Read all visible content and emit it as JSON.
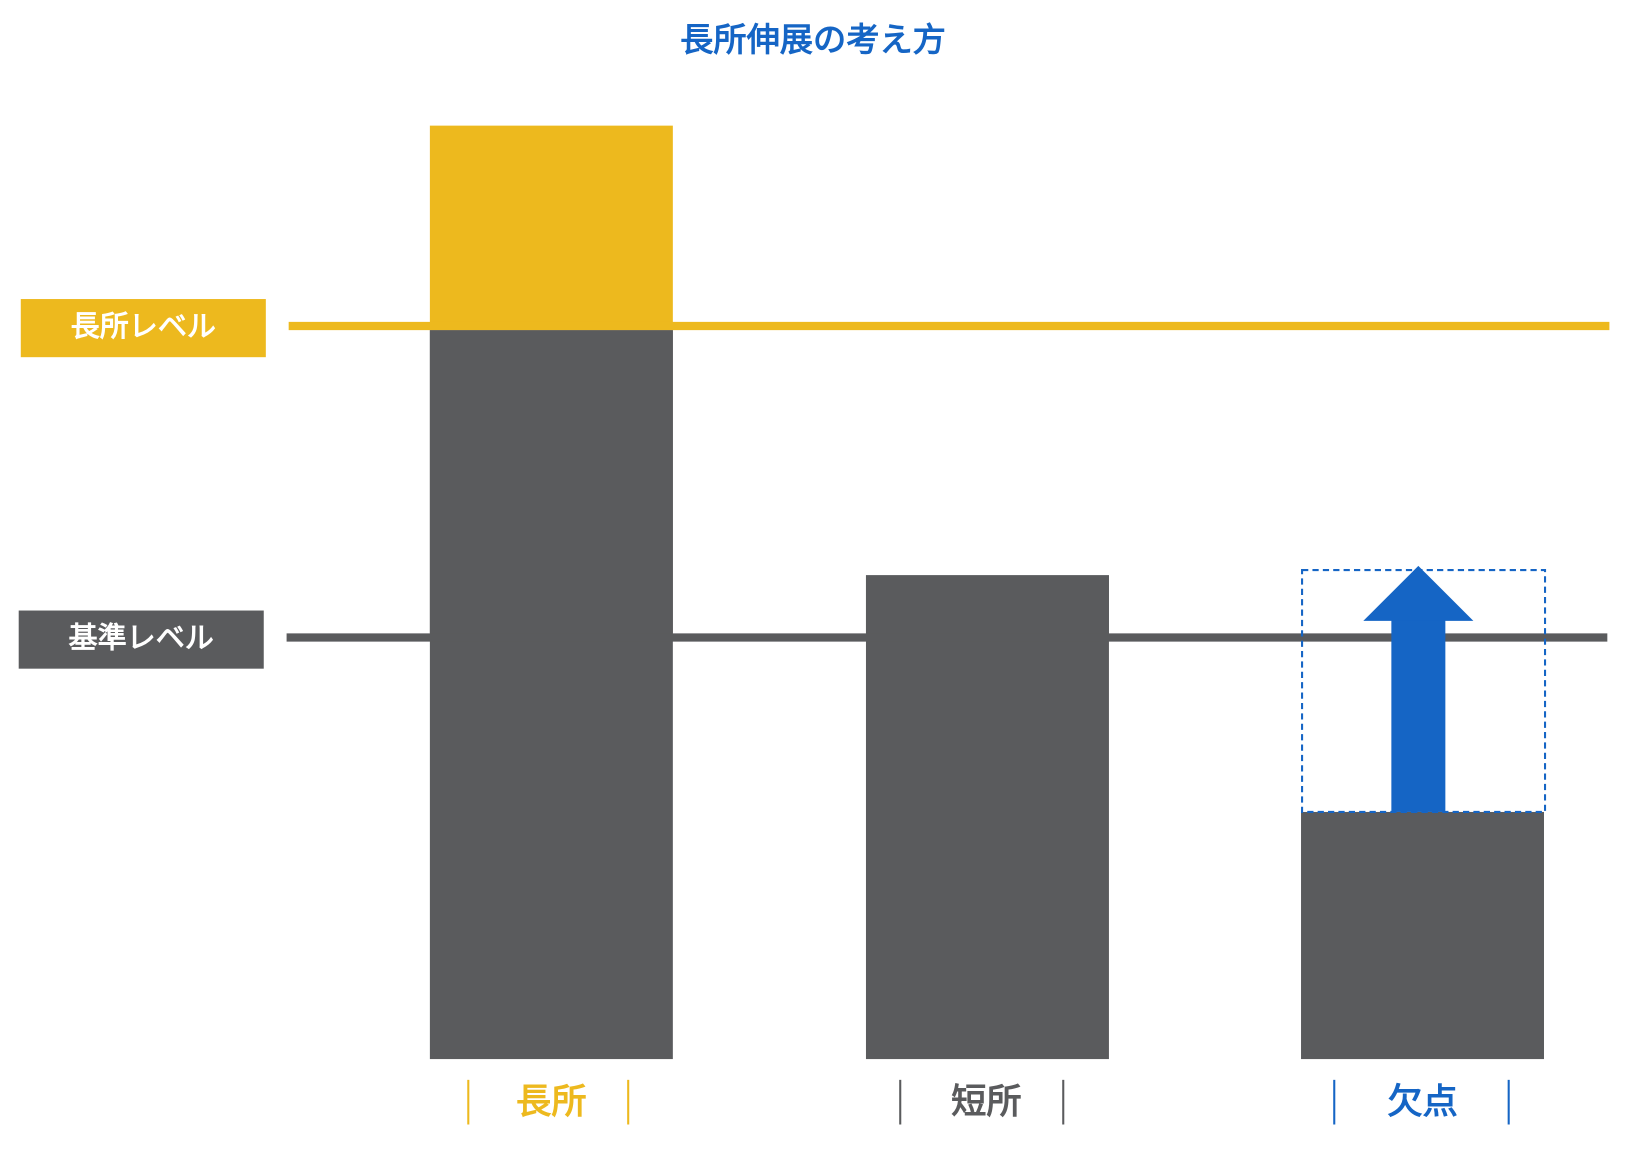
{
  "title": "長所伸展の考え方",
  "levels": {
    "strength": "長所レベル",
    "baseline": "基準レベル"
  },
  "bars": [
    {
      "label": "長所"
    },
    {
      "label": "短所"
    },
    {
      "label": "欠点"
    }
  ]
}
